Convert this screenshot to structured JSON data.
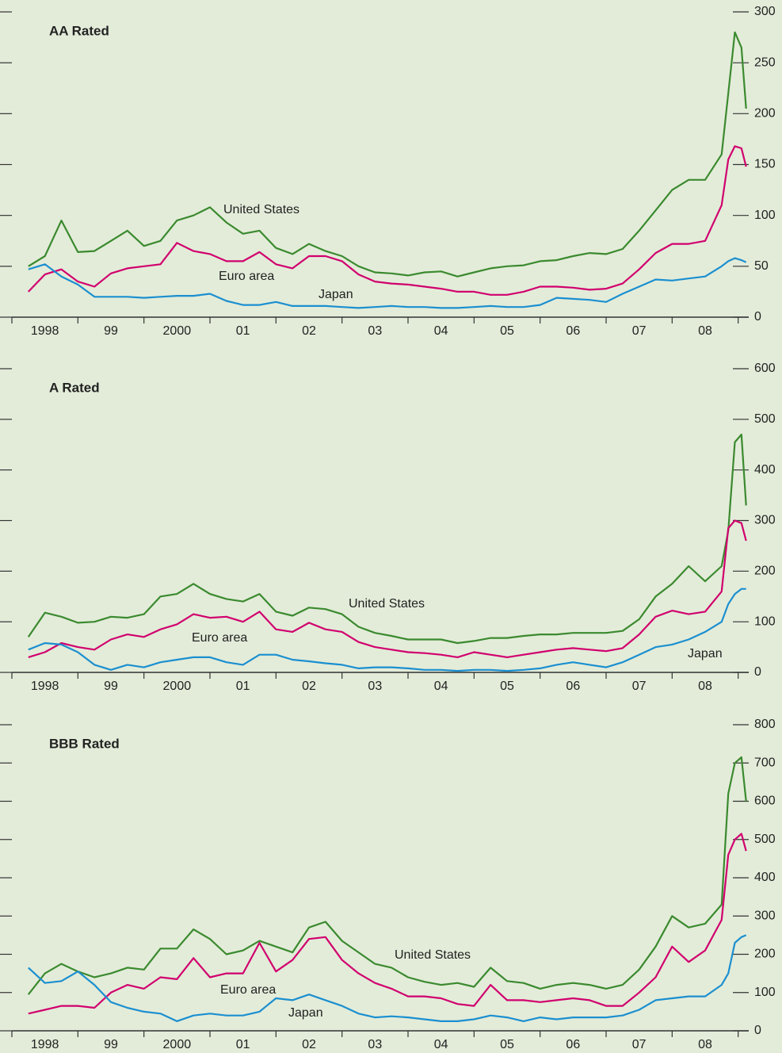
{
  "chart_data": [
    {
      "type": "line",
      "title": "AA Rated",
      "x": [
        1998.25,
        1998.5,
        1998.75,
        1999,
        1999.25,
        1999.5,
        1999.75,
        2000,
        2000.25,
        2000.5,
        2000.75,
        2001,
        2001.25,
        2001.5,
        2001.75,
        2002,
        2002.25,
        2002.5,
        2002.75,
        2003,
        2003.25,
        2003.5,
        2003.75,
        2004,
        2004.25,
        2004.5,
        2004.75,
        2005,
        2005.25,
        2005.5,
        2005.75,
        2006,
        2006.25,
        2006.5,
        2006.75,
        2007,
        2007.25,
        2007.5,
        2007.75,
        2008,
        2008.25,
        2008.5,
        2008.75,
        2008.85,
        2008.95,
        2009.05,
        2009.12
      ],
      "xlim": [
        1998,
        2009.16
      ],
      "xticks": [
        1998,
        1999,
        2000,
        2001,
        2002,
        2003,
        2004,
        2005,
        2006,
        2007,
        2008,
        2009
      ],
      "year_labels": [
        {
          "value": 1998.5,
          "label": "1998"
        },
        {
          "value": 1999.5,
          "label": "99"
        },
        {
          "value": 2000.5,
          "label": "2000"
        },
        {
          "value": 2001.5,
          "label": "01"
        },
        {
          "value": 2002.5,
          "label": "02"
        },
        {
          "value": 2003.5,
          "label": "03"
        },
        {
          "value": 2004.5,
          "label": "04"
        },
        {
          "value": 2005.5,
          "label": "05"
        },
        {
          "value": 2006.5,
          "label": "06"
        },
        {
          "value": 2007.5,
          "label": "07"
        },
        {
          "value": 2008.5,
          "label": "08"
        }
      ],
      "ylim": [
        0,
        300
      ],
      "yticks": [
        0,
        50,
        100,
        150,
        200,
        250,
        300
      ],
      "series": [
        {
          "name": "United States",
          "color": "#3b8a2f",
          "values": [
            50,
            60,
            95,
            64,
            65,
            75,
            85,
            70,
            75,
            95,
            100,
            108,
            93,
            82,
            85,
            68,
            62,
            72,
            65,
            60,
            50,
            44,
            43,
            41,
            44,
            45,
            40,
            44,
            48,
            50,
            51,
            55,
            56,
            60,
            63,
            62,
            67,
            85,
            105,
            125,
            135,
            135,
            160,
            220,
            280,
            265,
            205
          ]
        },
        {
          "name": "Euro area",
          "color": "#d1006e",
          "values": [
            25,
            42,
            47,
            35,
            30,
            43,
            48,
            50,
            52,
            73,
            65,
            62,
            55,
            55,
            64,
            52,
            48,
            60,
            60,
            55,
            42,
            35,
            33,
            32,
            30,
            28,
            25,
            25,
            22,
            22,
            25,
            30,
            30,
            29,
            27,
            28,
            33,
            47,
            63,
            72,
            72,
            75,
            110,
            155,
            168,
            166,
            148
          ]
        },
        {
          "name": "Japan",
          "color": "#1b8fd0",
          "values": [
            47,
            52,
            40,
            32,
            20,
            20,
            20,
            19,
            20,
            21,
            21,
            23,
            16,
            12,
            12,
            15,
            11,
            11,
            11,
            10,
            9,
            10,
            11,
            10,
            10,
            9,
            9,
            10,
            11,
            10,
            10,
            12,
            19,
            18,
            17,
            15,
            23,
            30,
            37,
            36,
            38,
            40,
            50,
            55,
            58,
            56,
            54
          ]
        }
      ]
    },
    {
      "type": "line",
      "title": "A Rated",
      "x": [
        1998.25,
        1998.5,
        1998.75,
        1999,
        1999.25,
        1999.5,
        1999.75,
        2000,
        2000.25,
        2000.5,
        2000.75,
        2001,
        2001.25,
        2001.5,
        2001.75,
        2002,
        2002.25,
        2002.5,
        2002.75,
        2003,
        2003.25,
        2003.5,
        2003.75,
        2004,
        2004.25,
        2004.5,
        2004.75,
        2005,
        2005.25,
        2005.5,
        2005.75,
        2006,
        2006.25,
        2006.5,
        2006.75,
        2007,
        2007.25,
        2007.5,
        2007.75,
        2008,
        2008.25,
        2008.5,
        2008.75,
        2008.85,
        2008.95,
        2009.05,
        2009.12
      ],
      "xlim": [
        1998,
        2009.16
      ],
      "xticks": [
        1998,
        1999,
        2000,
        2001,
        2002,
        2003,
        2004,
        2005,
        2006,
        2007,
        2008,
        2009
      ],
      "year_labels": [
        {
          "value": 1998.5,
          "label": "1998"
        },
        {
          "value": 1999.5,
          "label": "99"
        },
        {
          "value": 2000.5,
          "label": "2000"
        },
        {
          "value": 2001.5,
          "label": "01"
        },
        {
          "value": 2002.5,
          "label": "02"
        },
        {
          "value": 2003.5,
          "label": "03"
        },
        {
          "value": 2004.5,
          "label": "04"
        },
        {
          "value": 2005.5,
          "label": "05"
        },
        {
          "value": 2006.5,
          "label": "06"
        },
        {
          "value": 2007.5,
          "label": "07"
        },
        {
          "value": 2008.5,
          "label": "08"
        }
      ],
      "ylim": [
        0,
        600
      ],
      "yticks": [
        0,
        100,
        200,
        300,
        400,
        500,
        600
      ],
      "series": [
        {
          "name": "United States",
          "color": "#3b8a2f",
          "values": [
            70,
            118,
            110,
            98,
            100,
            110,
            108,
            115,
            150,
            155,
            175,
            155,
            145,
            140,
            155,
            120,
            112,
            128,
            125,
            115,
            90,
            78,
            72,
            65,
            65,
            65,
            58,
            62,
            68,
            68,
            72,
            75,
            75,
            78,
            78,
            78,
            82,
            105,
            150,
            175,
            210,
            180,
            210,
            280,
            455,
            470,
            330
          ]
        },
        {
          "name": "Euro area",
          "color": "#d1006e",
          "values": [
            30,
            40,
            58,
            50,
            45,
            65,
            75,
            70,
            85,
            95,
            115,
            108,
            110,
            100,
            120,
            85,
            80,
            98,
            85,
            80,
            60,
            50,
            45,
            40,
            38,
            35,
            30,
            40,
            35,
            30,
            35,
            40,
            45,
            48,
            45,
            42,
            48,
            75,
            110,
            122,
            115,
            120,
            160,
            285,
            300,
            295,
            260
          ]
        },
        {
          "name": "Japan",
          "color": "#1b8fd0",
          "values": [
            45,
            58,
            55,
            40,
            15,
            5,
            15,
            10,
            20,
            25,
            30,
            30,
            20,
            15,
            35,
            35,
            25,
            22,
            18,
            15,
            8,
            10,
            10,
            8,
            5,
            5,
            3,
            5,
            5,
            3,
            5,
            8,
            15,
            20,
            15,
            10,
            20,
            35,
            50,
            55,
            65,
            80,
            100,
            135,
            155,
            165,
            165
          ]
        }
      ]
    },
    {
      "type": "line",
      "title": "BBB Rated",
      "x": [
        1998.25,
        1998.5,
        1998.75,
        1999,
        1999.25,
        1999.5,
        1999.75,
        2000,
        2000.25,
        2000.5,
        2000.75,
        2001,
        2001.25,
        2001.5,
        2001.75,
        2002,
        2002.25,
        2002.5,
        2002.75,
        2003,
        2003.25,
        2003.5,
        2003.75,
        2004,
        2004.25,
        2004.5,
        2004.75,
        2005,
        2005.25,
        2005.5,
        2005.75,
        2006,
        2006.25,
        2006.5,
        2006.75,
        2007,
        2007.25,
        2007.5,
        2007.75,
        2008,
        2008.25,
        2008.5,
        2008.75,
        2008.85,
        2008.95,
        2009.05,
        2009.12
      ],
      "xlim": [
        1998,
        2009.16
      ],
      "xticks": [
        1998,
        1999,
        2000,
        2001,
        2002,
        2003,
        2004,
        2005,
        2006,
        2007,
        2008,
        2009
      ],
      "year_labels": [
        {
          "value": 1998.5,
          "label": "1998"
        },
        {
          "value": 1999.5,
          "label": "99"
        },
        {
          "value": 2000.5,
          "label": "2000"
        },
        {
          "value": 2001.5,
          "label": "01"
        },
        {
          "value": 2002.5,
          "label": "02"
        },
        {
          "value": 2003.5,
          "label": "03"
        },
        {
          "value": 2004.5,
          "label": "04"
        },
        {
          "value": 2005.5,
          "label": "05"
        },
        {
          "value": 2006.5,
          "label": "06"
        },
        {
          "value": 2007.5,
          "label": "07"
        },
        {
          "value": 2008.5,
          "label": "08"
        }
      ],
      "ylim": [
        0,
        800
      ],
      "yticks": [
        0,
        100,
        200,
        300,
        400,
        500,
        600,
        700,
        800
      ],
      "series": [
        {
          "name": "United States",
          "color": "#3b8a2f",
          "values": [
            95,
            150,
            175,
            155,
            140,
            150,
            165,
            160,
            215,
            215,
            265,
            240,
            200,
            210,
            235,
            220,
            205,
            270,
            285,
            235,
            205,
            175,
            165,
            140,
            128,
            120,
            125,
            115,
            165,
            130,
            125,
            110,
            120,
            125,
            120,
            110,
            120,
            160,
            220,
            300,
            270,
            280,
            330,
            620,
            700,
            715,
            600
          ]
        },
        {
          "name": "Euro area",
          "color": "#d1006e",
          "values": [
            45,
            55,
            65,
            65,
            60,
            100,
            120,
            110,
            140,
            135,
            190,
            140,
            150,
            150,
            230,
            155,
            185,
            240,
            245,
            185,
            150,
            125,
            110,
            90,
            90,
            85,
            70,
            65,
            120,
            80,
            80,
            75,
            80,
            85,
            80,
            65,
            65,
            100,
            140,
            220,
            180,
            210,
            290,
            460,
            500,
            515,
            470
          ]
        },
        {
          "name": "Japan",
          "color": "#1b8fd0",
          "values": [
            165,
            125,
            130,
            155,
            120,
            75,
            60,
            50,
            45,
            25,
            40,
            45,
            40,
            40,
            50,
            85,
            80,
            95,
            80,
            65,
            45,
            35,
            38,
            35,
            30,
            25,
            25,
            30,
            40,
            35,
            25,
            35,
            30,
            35,
            35,
            35,
            40,
            55,
            80,
            85,
            90,
            90,
            120,
            150,
            230,
            245,
            250
          ]
        }
      ]
    }
  ]
}
